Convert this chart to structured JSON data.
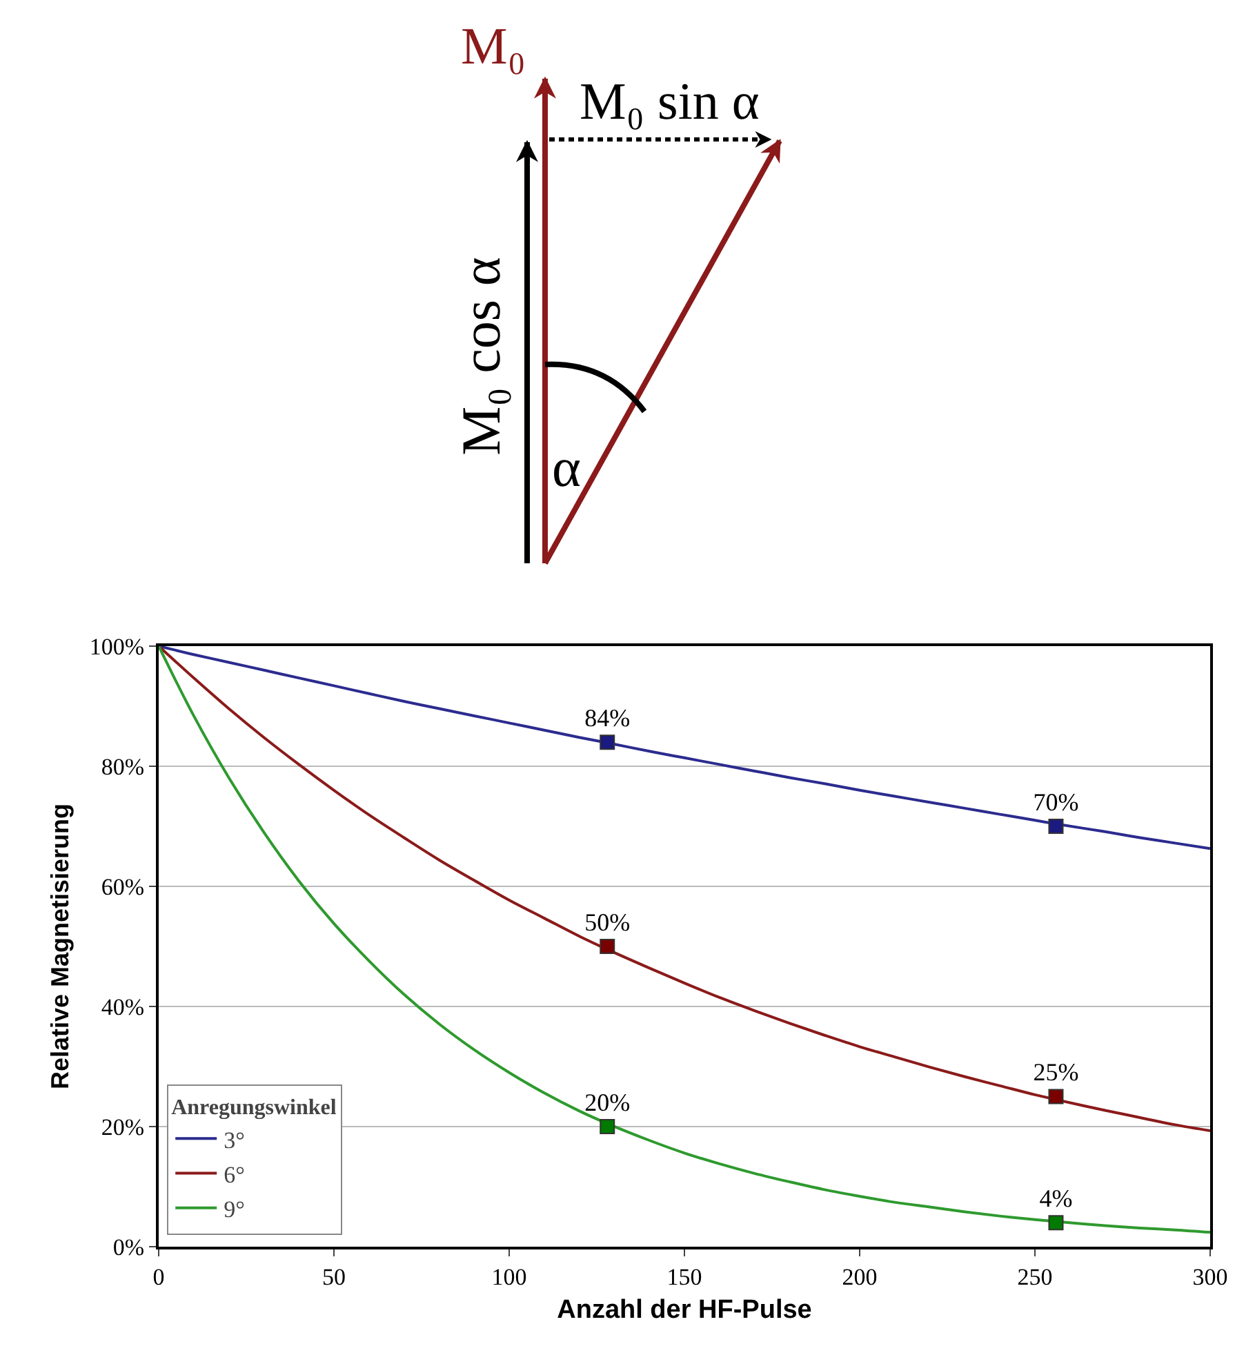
{
  "chart_data": {
    "type": "line",
    "xlabel": "Anzahl der HF-Pulse",
    "ylabel": "Relative Magnetisierung",
    "legend_title": "Anregungswinkel",
    "annotations": [
      "M₀",
      "M₀ sin α",
      "M₀ cos α",
      "α"
    ],
    "x": [
      0,
      10,
      20,
      30,
      40,
      50,
      60,
      70,
      80,
      90,
      100,
      110,
      120,
      128,
      140,
      150,
      160,
      170,
      180,
      190,
      200,
      210,
      220,
      230,
      240,
      250,
      256,
      270,
      280,
      290,
      300
    ],
    "series": [
      {
        "name": "3°",
        "color": "#2b2b8f",
        "marker": "none",
        "values": [
          100,
          98.6,
          97.3,
          96.0,
          94.7,
          93.4,
          92.1,
          90.8,
          89.6,
          88.4,
          87.2,
          86.0,
          84.8,
          83.9,
          82.5,
          81.4,
          80.3,
          79.2,
          78.1,
          77.1,
          76.0,
          75.0,
          74.0,
          73.0,
          72.0,
          71.0,
          70.4,
          69.1,
          68.1,
          67.2,
          66.3
        ]
      },
      {
        "name": "6°",
        "color": "#8b1a1a",
        "marker": "none",
        "values": [
          100,
          94.7,
          89.6,
          84.8,
          80.3,
          76.0,
          71.9,
          68.1,
          64.4,
          61.0,
          57.7,
          54.7,
          51.7,
          49.5,
          46.4,
          43.9,
          41.5,
          39.3,
          37.2,
          35.2,
          33.3,
          31.6,
          29.9,
          28.3,
          26.8,
          25.3,
          24.5,
          22.7,
          21.5,
          20.3,
          19.3
        ]
      },
      {
        "name": "9°",
        "color": "#2e9a2e",
        "marker": "none",
        "values": [
          100,
          88.4,
          78.1,
          69.0,
          60.9,
          53.8,
          47.6,
          42.0,
          37.1,
          32.8,
          29.0,
          25.6,
          22.6,
          20.5,
          17.7,
          15.6,
          13.8,
          12.2,
          10.8,
          9.5,
          8.4,
          7.4,
          6.6,
          5.8,
          5.1,
          4.5,
          4.2,
          3.5,
          3.1,
          2.8,
          2.4
        ]
      },
      {
        "type": "scatter",
        "marker": "square",
        "color": "#1a1a80",
        "values": [
          null,
          null,
          null,
          null,
          null,
          null,
          null,
          null,
          null,
          null,
          null,
          null,
          null,
          84,
          null,
          null,
          null,
          null,
          null,
          null,
          null,
          null,
          null,
          null,
          null,
          null,
          70,
          null,
          null,
          null,
          null
        ],
        "value_labels": [
          null,
          null,
          null,
          null,
          null,
          null,
          null,
          null,
          null,
          null,
          null,
          null,
          null,
          "84%",
          null,
          null,
          null,
          null,
          null,
          null,
          null,
          null,
          null,
          null,
          null,
          null,
          "70%",
          null,
          null,
          null,
          null
        ]
      },
      {
        "type": "scatter",
        "marker": "square",
        "color": "#7a0000",
        "values": [
          null,
          null,
          null,
          null,
          null,
          null,
          null,
          null,
          null,
          null,
          null,
          null,
          null,
          50,
          null,
          null,
          null,
          null,
          null,
          null,
          null,
          null,
          null,
          null,
          null,
          null,
          25,
          null,
          null,
          null,
          null
        ],
        "value_labels": [
          null,
          null,
          null,
          null,
          null,
          null,
          null,
          null,
          null,
          null,
          null,
          null,
          null,
          "50%",
          null,
          null,
          null,
          null,
          null,
          null,
          null,
          null,
          null,
          null,
          null,
          null,
          "25%",
          null,
          null,
          null,
          null
        ]
      },
      {
        "type": "scatter",
        "marker": "square",
        "color": "#007a00",
        "values": [
          null,
          null,
          null,
          null,
          null,
          null,
          null,
          null,
          null,
          null,
          null,
          null,
          null,
          20,
          null,
          null,
          null,
          null,
          null,
          null,
          null,
          null,
          null,
          null,
          null,
          null,
          4,
          null,
          null,
          null,
          null
        ],
        "value_labels": [
          null,
          null,
          null,
          null,
          null,
          null,
          null,
          null,
          null,
          null,
          null,
          null,
          null,
          "20%",
          null,
          null,
          null,
          null,
          null,
          null,
          null,
          null,
          null,
          null,
          null,
          null,
          "4%",
          null,
          null,
          null,
          null
        ]
      }
    ],
    "line_style": "solid",
    "xlim": [
      0,
      300
    ],
    "xticks": [
      0,
      50,
      100,
      150,
      200,
      250,
      300
    ],
    "ylim": [
      0,
      100
    ],
    "yticks": [
      {
        "value": 0,
        "label": "0%"
      },
      {
        "value": 20,
        "label": "20%"
      },
      {
        "value": 40,
        "label": "40%"
      },
      {
        "value": 60,
        "label": "60%"
      },
      {
        "value": 80,
        "label": "80%"
      },
      {
        "value": 100,
        "label": "100%"
      }
    ],
    "grid": "y",
    "legend": "bottom left"
  }
}
